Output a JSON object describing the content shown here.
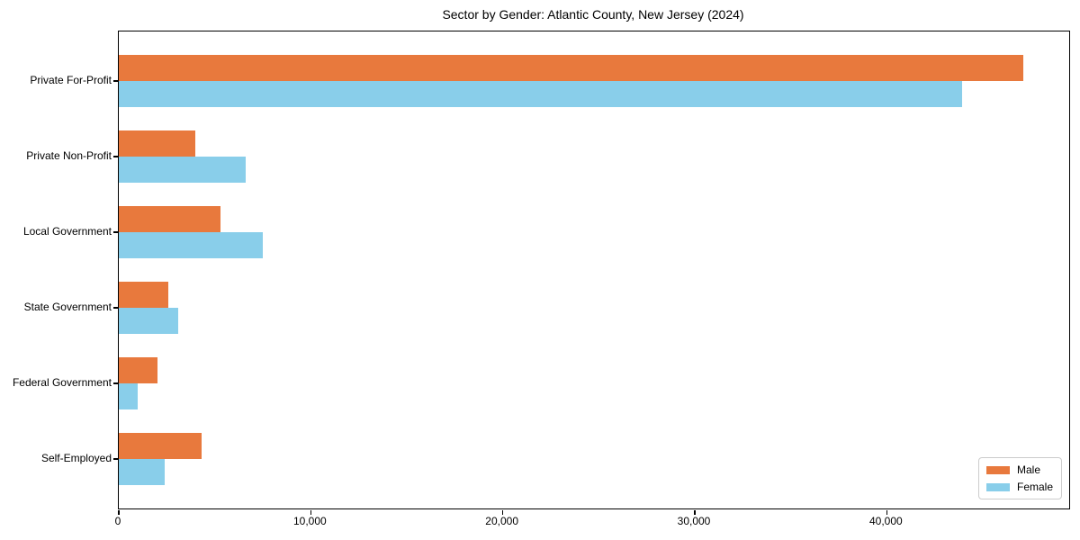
{
  "title": "Sector by Gender: Atlantic County, New Jersey (2024)",
  "colors": {
    "male": "#E8793D",
    "female": "#89CEEA",
    "axis": "#000000",
    "background": "#FFFFFF",
    "legend_border": "#CCCCCC"
  },
  "legend": {
    "position": "lower right",
    "entries": [
      "Male",
      "Female"
    ]
  },
  "chart_data": {
    "type": "bar",
    "orientation": "horizontal",
    "title": "Sector by Gender: Atlantic County, New Jersey (2024)",
    "xlabel": "",
    "ylabel": "",
    "grid": false,
    "categories": [
      "Private For-Profit",
      "Private Non-Profit",
      "Local Government",
      "State Government",
      "Federal Government",
      "Self-Employed"
    ],
    "series": [
      {
        "name": "Male",
        "color": "#E8793D",
        "values": [
          47100,
          4000,
          5300,
          2600,
          2000,
          4300
        ]
      },
      {
        "name": "Female",
        "color": "#89CEEA",
        "values": [
          43900,
          6600,
          7500,
          3100,
          1000,
          2400
        ]
      }
    ],
    "xlim": [
      0,
      49500
    ],
    "x_ticks": [
      0,
      10000,
      20000,
      30000,
      40000
    ],
    "x_tick_labels": [
      "0",
      "10,000",
      "20,000",
      "30,000",
      "40,000"
    ],
    "legend_position": "lower right"
  }
}
